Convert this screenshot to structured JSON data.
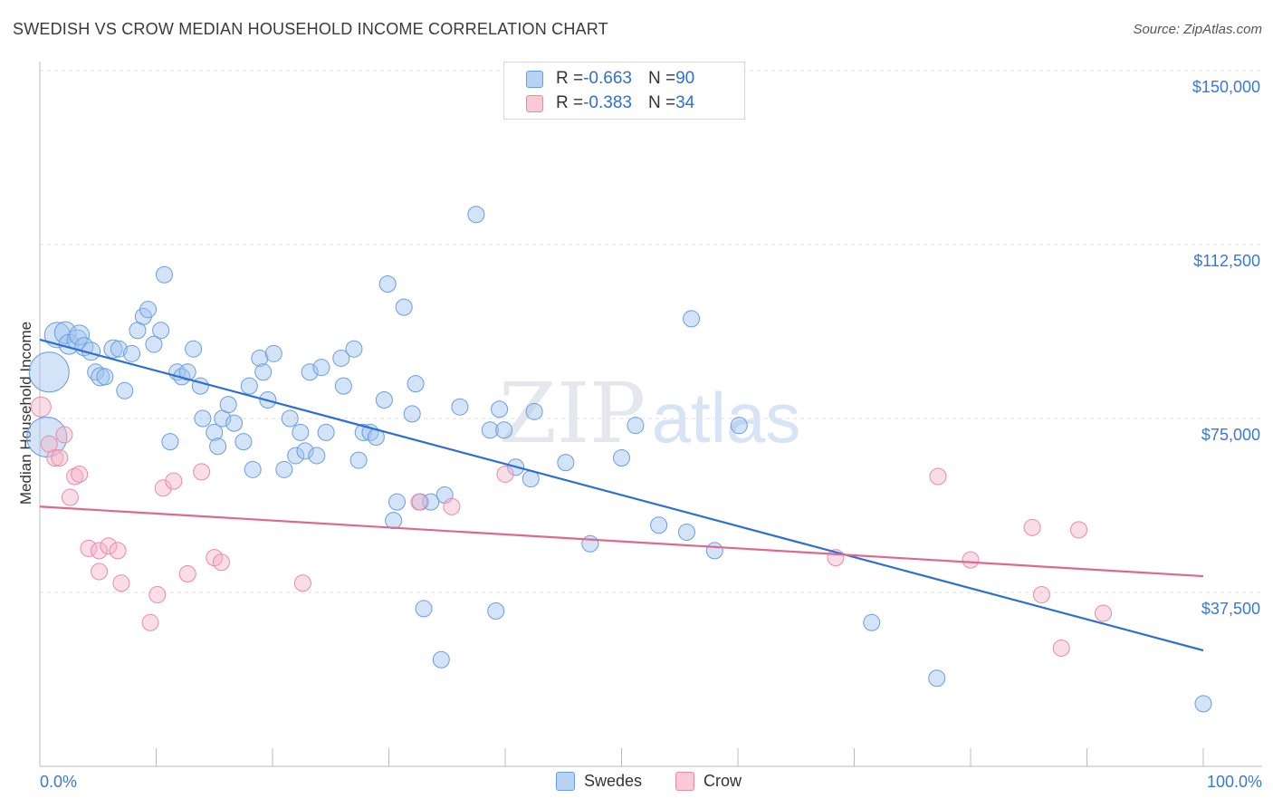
{
  "header": {
    "title": "SWEDISH VS CROW MEDIAN HOUSEHOLD INCOME CORRELATION CHART",
    "source": "Source: ZipAtlas.com"
  },
  "watermark": {
    "zip": "ZIP",
    "atlas": "atlas"
  },
  "legend": {
    "rows": [
      {
        "r_label": "R = ",
        "r_value": "-0.663",
        "n_label": "N = ",
        "n_value": "90",
        "color": "#a9c8f0",
        "border": "#5a8fd8"
      },
      {
        "r_label": "R = ",
        "r_value": "-0.383",
        "n_label": "N = ",
        "n_value": "34",
        "color": "#f7c0d0",
        "border": "#e07a9a"
      }
    ]
  },
  "bottom_legend": {
    "swedes": "Swedes",
    "crow": "Crow"
  },
  "colors": {
    "blue_fill": "rgba(160,195,240,0.45)",
    "blue_stroke": "#6a9de0",
    "blue_line": "#2d6fd2",
    "pink_fill": "rgba(245,180,200,0.45)",
    "pink_stroke": "#e88aa8",
    "pink_line": "#e06890",
    "accent_text": "#3a78d4"
  },
  "chart_data": {
    "type": "scatter",
    "title": "SWEDISH VS CROW MEDIAN HOUSEHOLD INCOME CORRELATION CHART",
    "xlabel": "",
    "ylabel": "Median Household Income",
    "xlim": [
      0,
      100
    ],
    "ylim": [
      0,
      155000
    ],
    "y_ticks": [
      {
        "value": 37500,
        "label": "$37,500"
      },
      {
        "value": 75000,
        "label": "$75,000"
      },
      {
        "value": 112500,
        "label": "$112,500"
      },
      {
        "value": 150000,
        "label": "$150,000"
      }
    ],
    "x_tick_labels": [
      {
        "value": 0,
        "label": "0.0%"
      },
      {
        "value": 100,
        "label": "100.0%"
      }
    ],
    "grid": true,
    "legend_position": "top-center",
    "series": [
      {
        "name": "Swedes",
        "trend": {
          "x": [
            0,
            100
          ],
          "y": [
            92000,
            25000
          ]
        },
        "points": [
          [
            0.8,
            85000,
            22
          ],
          [
            0.6,
            71000,
            22
          ],
          [
            1.5,
            93000,
            14
          ],
          [
            2.2,
            93500,
            12
          ],
          [
            2.5,
            91000,
            11
          ],
          [
            3.2,
            92000,
            11
          ],
          [
            3.4,
            93000,
            11
          ],
          [
            3.8,
            90500,
            10
          ],
          [
            4.4,
            89500,
            10
          ],
          [
            4.8,
            85000,
            9
          ],
          [
            5.2,
            84000,
            10
          ],
          [
            5.6,
            84000,
            9
          ],
          [
            6.3,
            90000,
            10
          ],
          [
            6.8,
            90000,
            9
          ],
          [
            7.3,
            81000,
            9
          ],
          [
            7.9,
            89000,
            9
          ],
          [
            8.4,
            94000,
            9
          ],
          [
            8.9,
            97000,
            9
          ],
          [
            9.3,
            98500,
            9
          ],
          [
            9.8,
            91000,
            9
          ],
          [
            10.4,
            94000,
            9
          ],
          [
            10.7,
            106000,
            9
          ],
          [
            11.2,
            70000,
            9
          ],
          [
            11.8,
            85000,
            9
          ],
          [
            12.2,
            84000,
            9
          ],
          [
            12.7,
            85000,
            9
          ],
          [
            13.2,
            90000,
            9
          ],
          [
            13.8,
            82000,
            9
          ],
          [
            14.0,
            75000,
            9
          ],
          [
            15.0,
            72000,
            9
          ],
          [
            15.3,
            69000,
            9
          ],
          [
            15.7,
            75000,
            9
          ],
          [
            16.2,
            78000,
            9
          ],
          [
            16.7,
            74000,
            9
          ],
          [
            17.5,
            70000,
            9
          ],
          [
            18.0,
            82000,
            9
          ],
          [
            18.3,
            64000,
            9
          ],
          [
            18.9,
            88000,
            9
          ],
          [
            19.2,
            85000,
            9
          ],
          [
            19.6,
            79000,
            9
          ],
          [
            20.1,
            89000,
            9
          ],
          [
            21.0,
            64000,
            9
          ],
          [
            21.5,
            75000,
            9
          ],
          [
            22.0,
            67000,
            9
          ],
          [
            22.4,
            72000,
            9
          ],
          [
            22.8,
            68000,
            9
          ],
          [
            23.2,
            85000,
            9
          ],
          [
            23.8,
            67000,
            9
          ],
          [
            24.2,
            86000,
            9
          ],
          [
            24.6,
            72000,
            9
          ],
          [
            25.9,
            88000,
            9
          ],
          [
            26.1,
            82000,
            9
          ],
          [
            27.0,
            90000,
            9
          ],
          [
            27.4,
            66000,
            9
          ],
          [
            27.8,
            72000,
            9
          ],
          [
            28.4,
            72000,
            9
          ],
          [
            28.9,
            71000,
            9
          ],
          [
            29.6,
            79000,
            9
          ],
          [
            29.9,
            104000,
            9
          ],
          [
            30.4,
            53000,
            9
          ],
          [
            30.7,
            57000,
            9
          ],
          [
            31.3,
            99000,
            9
          ],
          [
            32.0,
            76000,
            9
          ],
          [
            32.3,
            82500,
            9
          ],
          [
            32.7,
            57000,
            9
          ],
          [
            33.0,
            34000,
            9
          ],
          [
            33.6,
            57000,
            9
          ],
          [
            34.5,
            23000,
            9
          ],
          [
            34.8,
            58500,
            9
          ],
          [
            36.1,
            77500,
            9
          ],
          [
            37.5,
            119000,
            9
          ],
          [
            38.7,
            72500,
            9
          ],
          [
            39.2,
            33500,
            9
          ],
          [
            39.5,
            77000,
            9
          ],
          [
            39.9,
            72500,
            9
          ],
          [
            40.9,
            64500,
            9
          ],
          [
            42.5,
            76500,
            9
          ],
          [
            42.2,
            62000,
            9
          ],
          [
            45.2,
            65500,
            9
          ],
          [
            47.3,
            48000,
            9
          ],
          [
            50.0,
            66500,
            9
          ],
          [
            51.2,
            73500,
            9
          ],
          [
            53.2,
            52000,
            9
          ],
          [
            55.6,
            50500,
            9
          ],
          [
            56.0,
            96500,
            9
          ],
          [
            58.0,
            46500,
            9
          ],
          [
            60.1,
            73500,
            9
          ],
          [
            71.5,
            31000,
            9
          ],
          [
            77.1,
            19000,
            9
          ],
          [
            100.0,
            13500,
            9
          ]
        ]
      },
      {
        "name": "Crow",
        "trend": {
          "x": [
            0,
            100
          ],
          "y": [
            56000,
            41000
          ]
        },
        "points": [
          [
            0.1,
            77500,
            11
          ],
          [
            0.8,
            69500,
            9
          ],
          [
            1.3,
            66500,
            9
          ],
          [
            1.7,
            66500,
            9
          ],
          [
            2.1,
            71500,
            9
          ],
          [
            2.6,
            58000,
            9
          ],
          [
            3.0,
            62500,
            9
          ],
          [
            3.4,
            63000,
            9
          ],
          [
            4.2,
            47000,
            9
          ],
          [
            5.1,
            42000,
            9
          ],
          [
            5.1,
            46500,
            9
          ],
          [
            5.9,
            47500,
            9
          ],
          [
            6.7,
            46500,
            9
          ],
          [
            7.0,
            39500,
            9
          ],
          [
            9.5,
            31000,
            9
          ],
          [
            10.1,
            37000,
            9
          ],
          [
            10.6,
            60000,
            9
          ],
          [
            11.5,
            61500,
            9
          ],
          [
            12.7,
            41500,
            9
          ],
          [
            13.9,
            63500,
            9
          ],
          [
            15.0,
            45000,
            9
          ],
          [
            15.6,
            44000,
            9
          ],
          [
            22.6,
            39500,
            9
          ],
          [
            32.6,
            57000,
            9
          ],
          [
            35.4,
            56000,
            9
          ],
          [
            40.0,
            63000,
            9
          ],
          [
            68.4,
            45000,
            9
          ],
          [
            77.2,
            62500,
            9
          ],
          [
            80.0,
            44500,
            9
          ],
          [
            85.3,
            51500,
            9
          ],
          [
            86.1,
            37000,
            9
          ],
          [
            87.8,
            25500,
            9
          ],
          [
            89.3,
            51000,
            9
          ],
          [
            91.4,
            33000,
            9
          ]
        ]
      }
    ]
  }
}
